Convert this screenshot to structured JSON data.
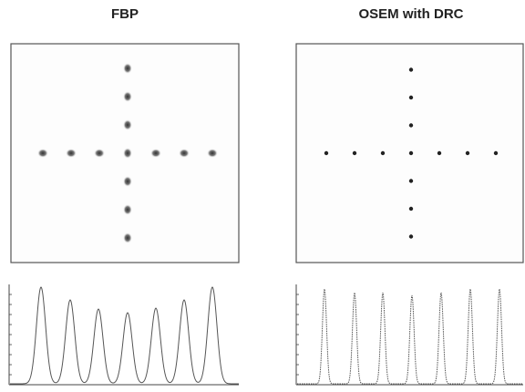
{
  "panels": [
    {
      "title": "FBP"
    },
    {
      "title": "OSEM with DRC"
    }
  ]
}
